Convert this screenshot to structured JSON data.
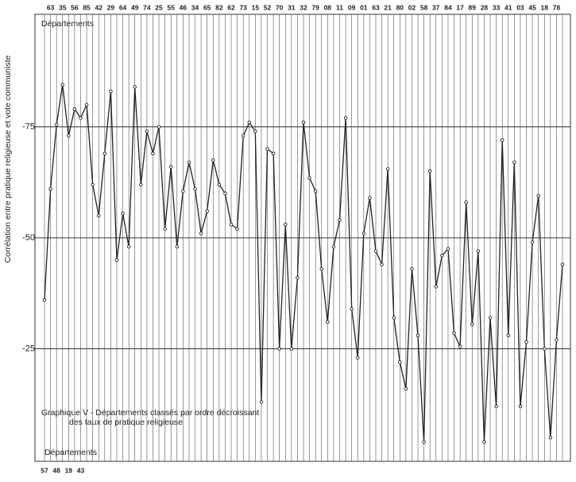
{
  "chart_data": {
    "type": "line",
    "y_label": "Corrélation entre pratique religieuse et vote communiste",
    "x_label_top": "Départements",
    "x_label_bottom": "Départements",
    "annotation": [
      "Graphique V - Départements classés par ordre décroissant",
      "des taux de pratique religieuse"
    ],
    "categories": [
      "57",
      "63",
      "48",
      "35",
      "19",
      "56",
      "43",
      "85",
      null,
      "42",
      null,
      "29",
      null,
      "64",
      null,
      "49",
      null,
      "74",
      null,
      "25",
      null,
      "55",
      null,
      "46",
      null,
      "34",
      null,
      "65",
      null,
      "82",
      null,
      "62",
      null,
      "73",
      null,
      "15",
      null,
      "52",
      null,
      "70",
      null,
      "31",
      null,
      "32",
      null,
      "79",
      null,
      "08",
      null,
      "11",
      null,
      "09",
      null,
      "01",
      null,
      "63",
      null,
      "21",
      null,
      "80",
      null,
      "02",
      null,
      "58",
      null,
      "37",
      null,
      "84",
      null,
      "17",
      null,
      "89",
      null,
      "28",
      null,
      "33",
      null,
      "41",
      null,
      "03",
      null,
      "45",
      null,
      "18",
      null,
      "78",
      null
    ],
    "series": [
      {
        "name": "Corrélation",
        "color": "#222222",
        "values": [
          -36,
          -61,
          -75.5,
          -84.5,
          -73,
          -79,
          -77,
          -80,
          -62,
          -55,
          -69,
          -83,
          -45,
          -55.5,
          -48,
          -84,
          -62,
          -74,
          -69,
          -75,
          -52,
          -66,
          -48,
          -60.5,
          -67,
          -61,
          -51,
          -56,
          -67.5,
          -62,
          -60,
          -53,
          -52,
          -73,
          -76,
          -74,
          -13,
          -70,
          -69,
          -25,
          -53,
          -25,
          -41,
          -76,
          -63.5,
          -60.5,
          -43,
          -31,
          -48,
          -54,
          -77,
          -34,
          -23,
          -51,
          -59,
          -47,
          -44,
          -65.5,
          -32,
          -22,
          -16,
          -43,
          -28,
          -4,
          -65,
          -39,
          -46,
          -47.5,
          -28.5,
          -25.5,
          -58,
          -30.5,
          -47,
          -4,
          -32,
          -12,
          -72,
          -28,
          -67,
          -12,
          -26.5,
          -49,
          -59.5,
          -25,
          -5,
          -27,
          -44
        ]
      }
    ],
    "ylim": [
      0,
      -100
    ],
    "yticks": [
      -75,
      -50,
      -25
    ],
    "grid": true
  }
}
